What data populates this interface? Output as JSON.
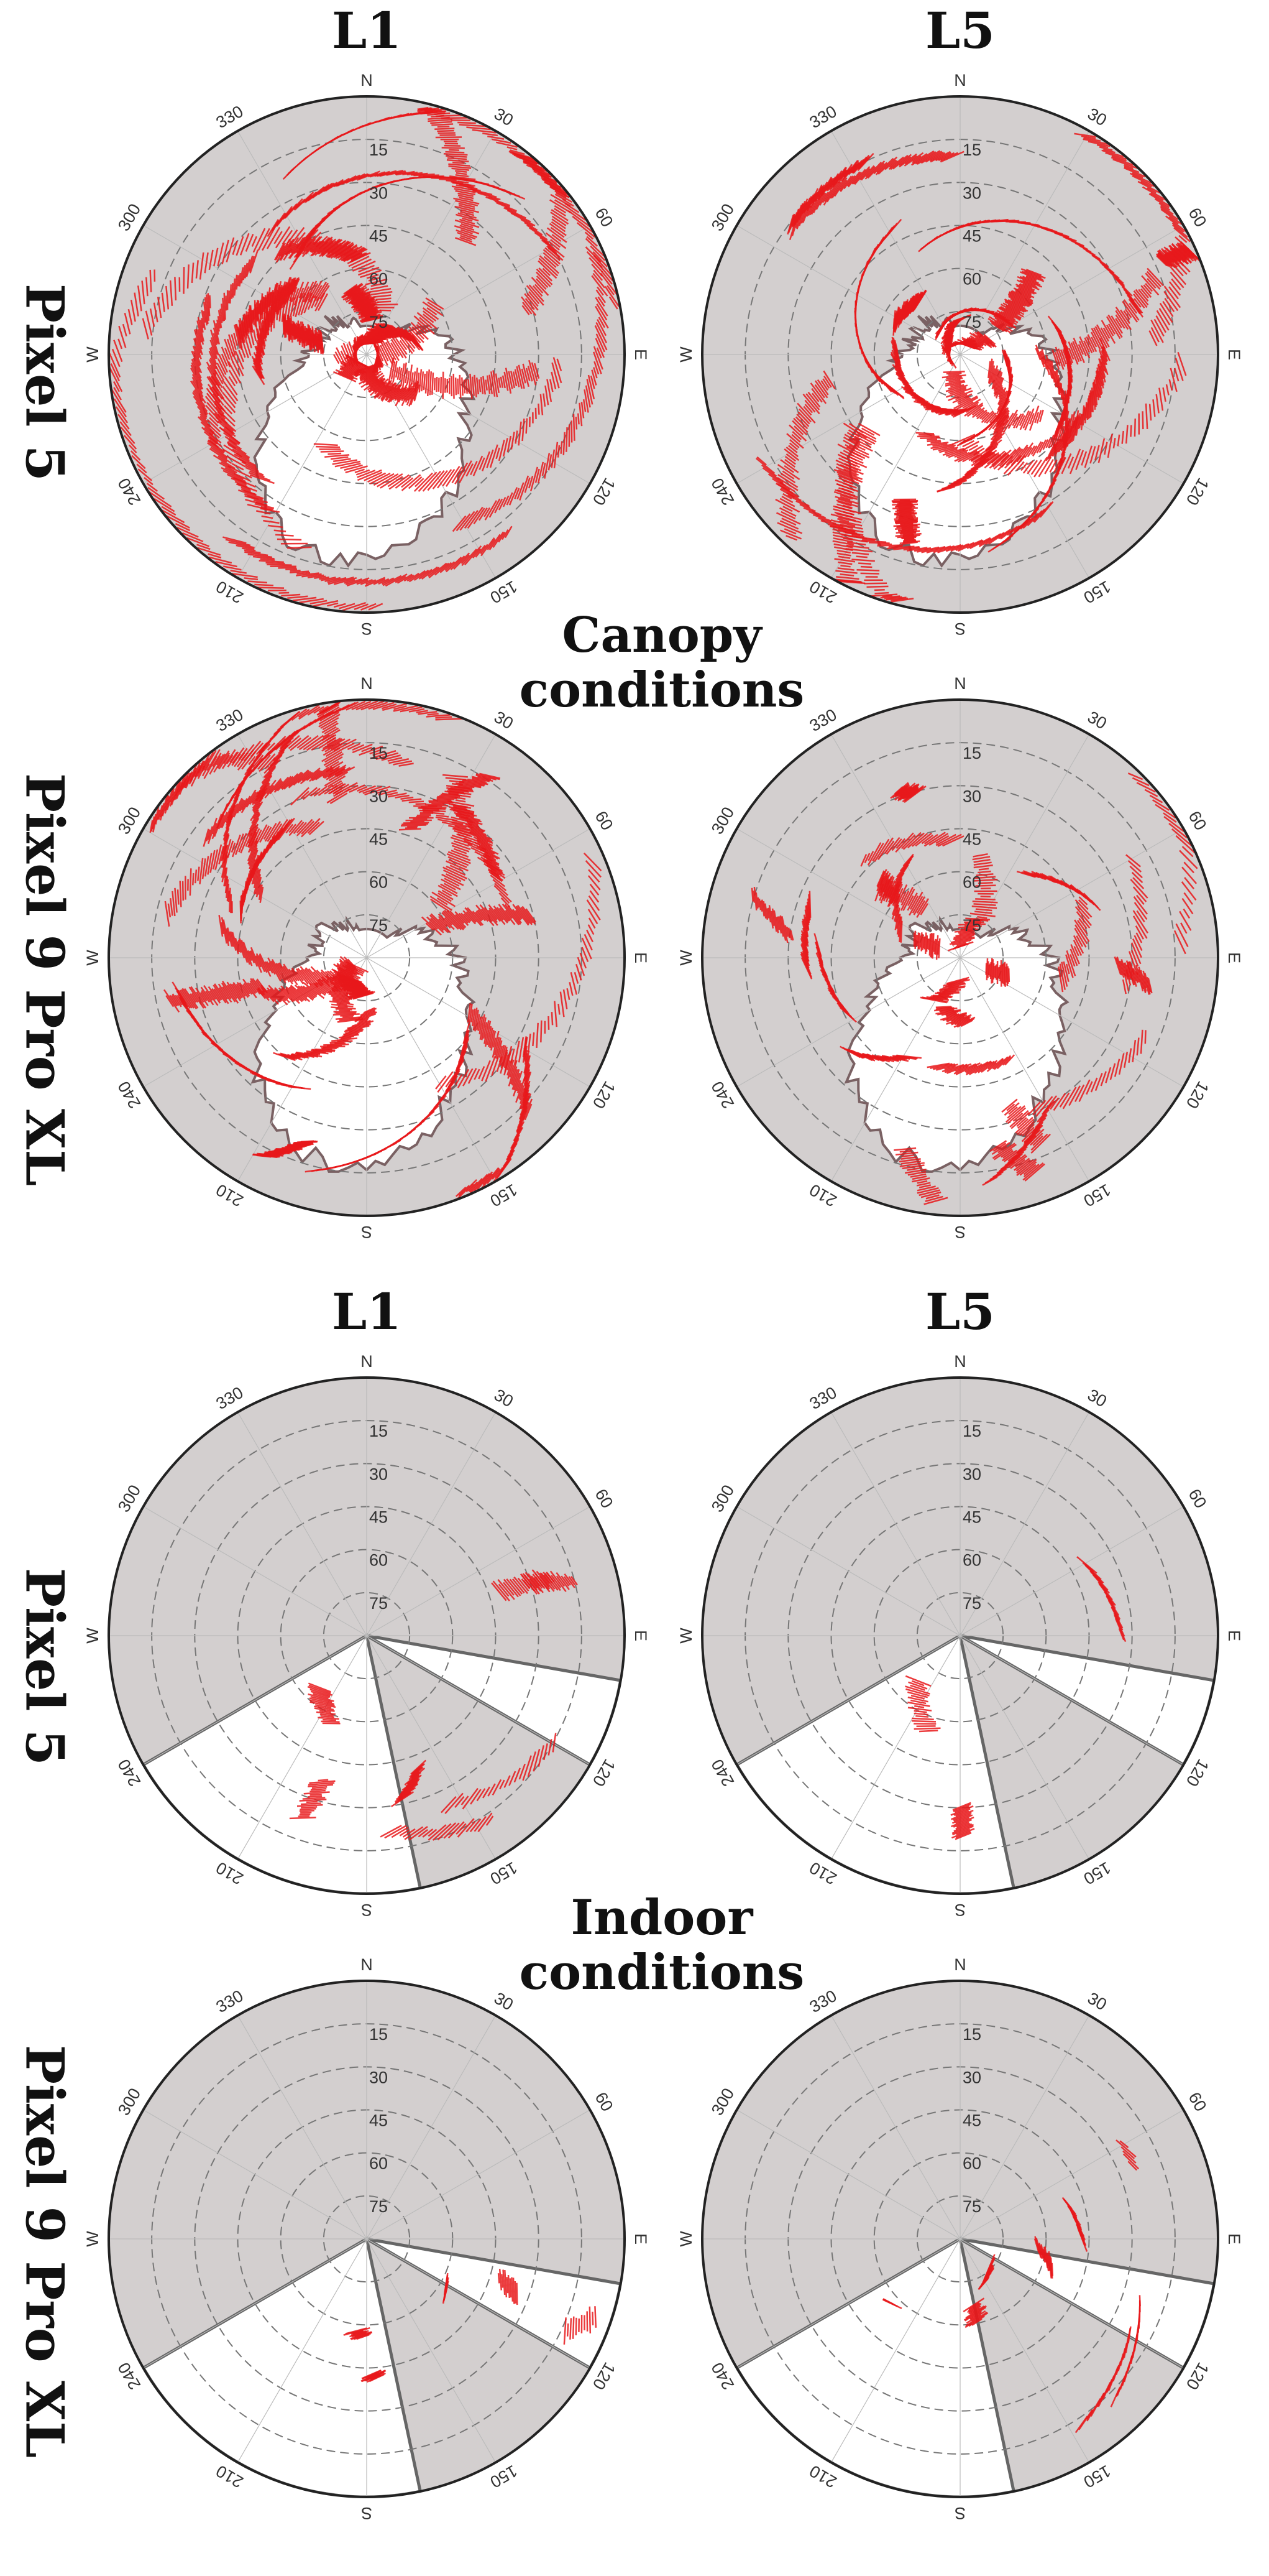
{
  "figure": {
    "col_labels": [
      "L1",
      "L5"
    ],
    "row_labels": [
      "Pixel 5",
      "Pixel 9 Pro XL"
    ],
    "sections": [
      {
        "title_line1": "Canopy",
        "title_line2": "conditions"
      },
      {
        "title_line1": "Indoor",
        "title_line2": "conditions"
      }
    ]
  },
  "colors": {
    "obstructed": "#d3cfcf",
    "open_sky": "#ffffff",
    "signal": "#e8181b",
    "grid": "#777777",
    "boundary": "#7a6163"
  },
  "chart_data": [
    {
      "type": "scatter",
      "panel": "Pixel 5 L1 canopy",
      "environment": "canopy",
      "device": "Pixel 5",
      "band": "L1",
      "density": 1.0,
      "elevation_rings": [
        15,
        30,
        45,
        60,
        75
      ],
      "azimuth_labels": [
        "N",
        "30",
        "60",
        "E",
        "120",
        "150",
        "S",
        "210",
        "240",
        "W",
        "300",
        "330"
      ],
      "open_sky_mask": "canopy-gap",
      "series": [
        {
          "values": []
        }
      ]
    },
    {
      "type": "scatter",
      "panel": "Pixel 5 L5 canopy",
      "environment": "canopy",
      "device": "Pixel 5",
      "band": "L5",
      "density": 0.85,
      "elevation_rings": [
        15,
        30,
        45,
        60,
        75
      ],
      "azimuth_labels": [
        "N",
        "30",
        "60",
        "E",
        "120",
        "150",
        "S",
        "210",
        "240",
        "W",
        "300",
        "330"
      ],
      "open_sky_mask": "canopy-gap",
      "series": [
        {
          "values": []
        }
      ]
    },
    {
      "type": "scatter",
      "panel": "Pixel 9 Pro XL L1 canopy",
      "environment": "canopy",
      "device": "Pixel 9 Pro XL",
      "band": "L1",
      "density": 0.75,
      "elevation_rings": [
        15,
        30,
        45,
        60,
        75
      ],
      "azimuth_labels": [
        "N",
        "30",
        "60",
        "E",
        "120",
        "150",
        "S",
        "210",
        "240",
        "W",
        "300",
        "330"
      ],
      "open_sky_mask": "canopy-gap",
      "series": [
        {
          "values": []
        }
      ]
    },
    {
      "type": "scatter",
      "panel": "Pixel 9 Pro XL L5 canopy",
      "environment": "canopy",
      "device": "Pixel 9 Pro XL",
      "band": "L5",
      "density": 0.35,
      "elevation_rings": [
        15,
        30,
        45,
        60,
        75
      ],
      "azimuth_labels": [
        "N",
        "30",
        "60",
        "E",
        "120",
        "150",
        "S",
        "210",
        "240",
        "W",
        "300",
        "330"
      ],
      "open_sky_mask": "canopy-gap",
      "series": [
        {
          "values": []
        }
      ]
    },
    {
      "type": "scatter",
      "panel": "Pixel 5 L1 indoor",
      "environment": "indoor",
      "device": "Pixel 5",
      "band": "L1",
      "density": 0.55,
      "elevation_rings": [
        15,
        30,
        45,
        60,
        75
      ],
      "azimuth_labels": [
        "N",
        "30",
        "60",
        "E",
        "120",
        "150",
        "S",
        "210",
        "240",
        "W",
        "300",
        "330"
      ],
      "open_sky_sectors": [
        [
          100,
          120
        ],
        [
          168,
          240
        ]
      ],
      "series": [
        {
          "values": []
        }
      ]
    },
    {
      "type": "scatter",
      "panel": "Pixel 5 L5 indoor",
      "environment": "indoor",
      "device": "Pixel 5",
      "band": "L5",
      "density": 0.55,
      "elevation_rings": [
        15,
        30,
        45,
        60,
        75
      ],
      "azimuth_labels": [
        "N",
        "30",
        "60",
        "E",
        "120",
        "150",
        "S",
        "210",
        "240",
        "W",
        "300",
        "330"
      ],
      "open_sky_sectors": [
        [
          100,
          120
        ],
        [
          168,
          240
        ]
      ],
      "series": [
        {
          "values": []
        }
      ]
    },
    {
      "type": "scatter",
      "panel": "Pixel 9 Pro XL L1 indoor",
      "environment": "indoor",
      "device": "Pixel 9 Pro XL",
      "band": "L1",
      "density": 0.3,
      "elevation_rings": [
        15,
        30,
        45,
        60,
        75
      ],
      "azimuth_labels": [
        "N",
        "30",
        "60",
        "E",
        "120",
        "150",
        "S",
        "210",
        "240",
        "W",
        "300",
        "330"
      ],
      "open_sky_sectors": [
        [
          100,
          120
        ],
        [
          168,
          240
        ]
      ],
      "series": [
        {
          "values": []
        }
      ]
    },
    {
      "type": "scatter",
      "panel": "Pixel 9 Pro XL L5 indoor",
      "environment": "indoor",
      "device": "Pixel 9 Pro XL",
      "band": "L5",
      "density": 0.45,
      "elevation_rings": [
        15,
        30,
        45,
        60,
        75
      ],
      "azimuth_labels": [
        "N",
        "30",
        "60",
        "E",
        "120",
        "150",
        "S",
        "210",
        "240",
        "W",
        "300",
        "330"
      ],
      "open_sky_sectors": [
        [
          100,
          120
        ],
        [
          168,
          240
        ]
      ],
      "series": [
        {
          "values": []
        }
      ]
    }
  ]
}
